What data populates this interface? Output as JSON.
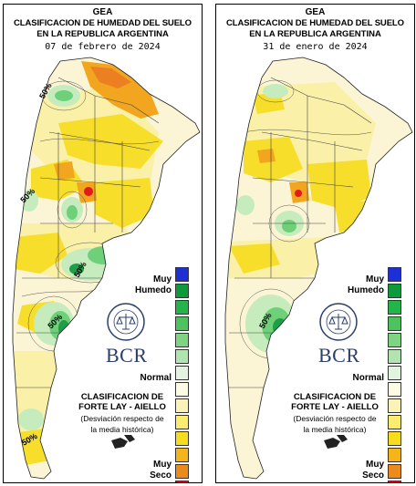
{
  "panels": [
    {
      "id": "left",
      "title1": "GEA",
      "title2": "CLASIFICACION DE HUMEDAD DEL SUELO",
      "title3": "EN LA REPUBLICA ARGENTINA",
      "date": "07 de febrero de 2024",
      "contour_labels": [
        "50%",
        "50%",
        "50%",
        "50%",
        "50%"
      ],
      "legend": {
        "muy": "Muy",
        "humedo": "Humedo",
        "normal": "Normal",
        "muy_seco": "Muy",
        "seco": "Seco",
        "classification_title1": "CLASIFICACION DE",
        "classification_title2": "FORTE LAY - AIELLO",
        "classification_sub1": "(Desviación respecto de",
        "classification_sub2": "la media histórica)",
        "logo_text": "BCR",
        "seal_text": "BOLSA DE COMERCIO DE ROSARIO"
      }
    },
    {
      "id": "right",
      "title1": "GEA",
      "title2": "CLASIFICACION DE HUMEDAD DEL SUELO",
      "title3": "EN LA REPUBLICA ARGENTINA",
      "date": "31 de enero de 2024",
      "contour_labels": [
        "50%"
      ],
      "legend": {
        "muy": "Muy",
        "humedo": "Humedo",
        "normal": "Normal",
        "muy_seco": "Muy",
        "seco": "Seco",
        "classification_title1": "CLASIFICACION DE",
        "classification_title2": "FORTE LAY - AIELLO",
        "classification_sub1": "(Desviación respecto de",
        "classification_sub2": "la media histórica)",
        "logo_text": "BCR",
        "seal_text": "BOLSA DE COMERCIO DE ROSARIO"
      }
    }
  ],
  "legend_colors": [
    "#1f2fd6",
    "#0d9a3c",
    "#23b54a",
    "#4cc35f",
    "#7ed483",
    "#b1e4b1",
    "#e2f3e0",
    "#fdfbe3",
    "#faf2b8",
    "#f9ec6e",
    "#f6dd1e",
    "#f3b51a",
    "#ed8a1c",
    "#e2121c"
  ],
  "map_colors": {
    "normal": "#fbf5d6",
    "light_yellow": "#faf0a8",
    "yellow": "#f7de2a",
    "orange": "#f2a51e",
    "dark_orange": "#ec7f22",
    "red": "#e11a1c",
    "light_green": "#c6ecbd",
    "green": "#6fd07a",
    "dark_green": "#1f9e4a",
    "blue": "#1f2fd6"
  }
}
